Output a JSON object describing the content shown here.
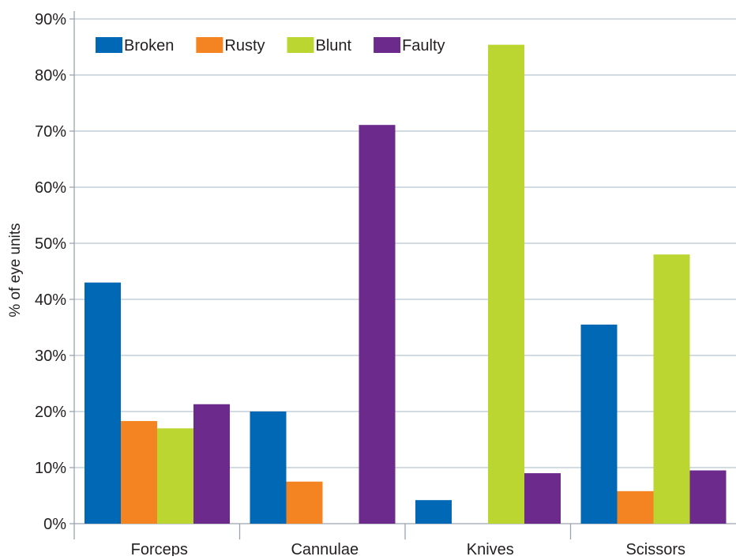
{
  "chart_data": {
    "type": "bar",
    "categories": [
      "Forceps",
      "Cannulae",
      "Knives",
      "Scissors"
    ],
    "series": [
      {
        "name": "Broken",
        "color": "#0068b4",
        "values": [
          43,
          20,
          4.2,
          35.5
        ]
      },
      {
        "name": "Rusty",
        "color": "#f38421",
        "values": [
          18.3,
          7.5,
          0,
          5.8
        ]
      },
      {
        "name": "Blunt",
        "color": "#bbd531",
        "values": [
          17,
          0,
          85.4,
          48
        ]
      },
      {
        "name": "Faulty",
        "color": "#6d2a8d",
        "values": [
          21.3,
          71.1,
          9,
          9.5
        ]
      }
    ],
    "title": "",
    "xlabel": "",
    "ylabel": "% of eye units",
    "ylim": [
      0,
      90
    ],
    "yticks": [
      0,
      10,
      20,
      30,
      40,
      50,
      60,
      70,
      80,
      90
    ],
    "ytick_labels": [
      "0%",
      "10%",
      "20%",
      "30%",
      "40%",
      "50%",
      "60%",
      "70%",
      "80%",
      "90%"
    ],
    "grid": true,
    "grid_color": "#b7c3d0",
    "legend_position": "top-left"
  }
}
